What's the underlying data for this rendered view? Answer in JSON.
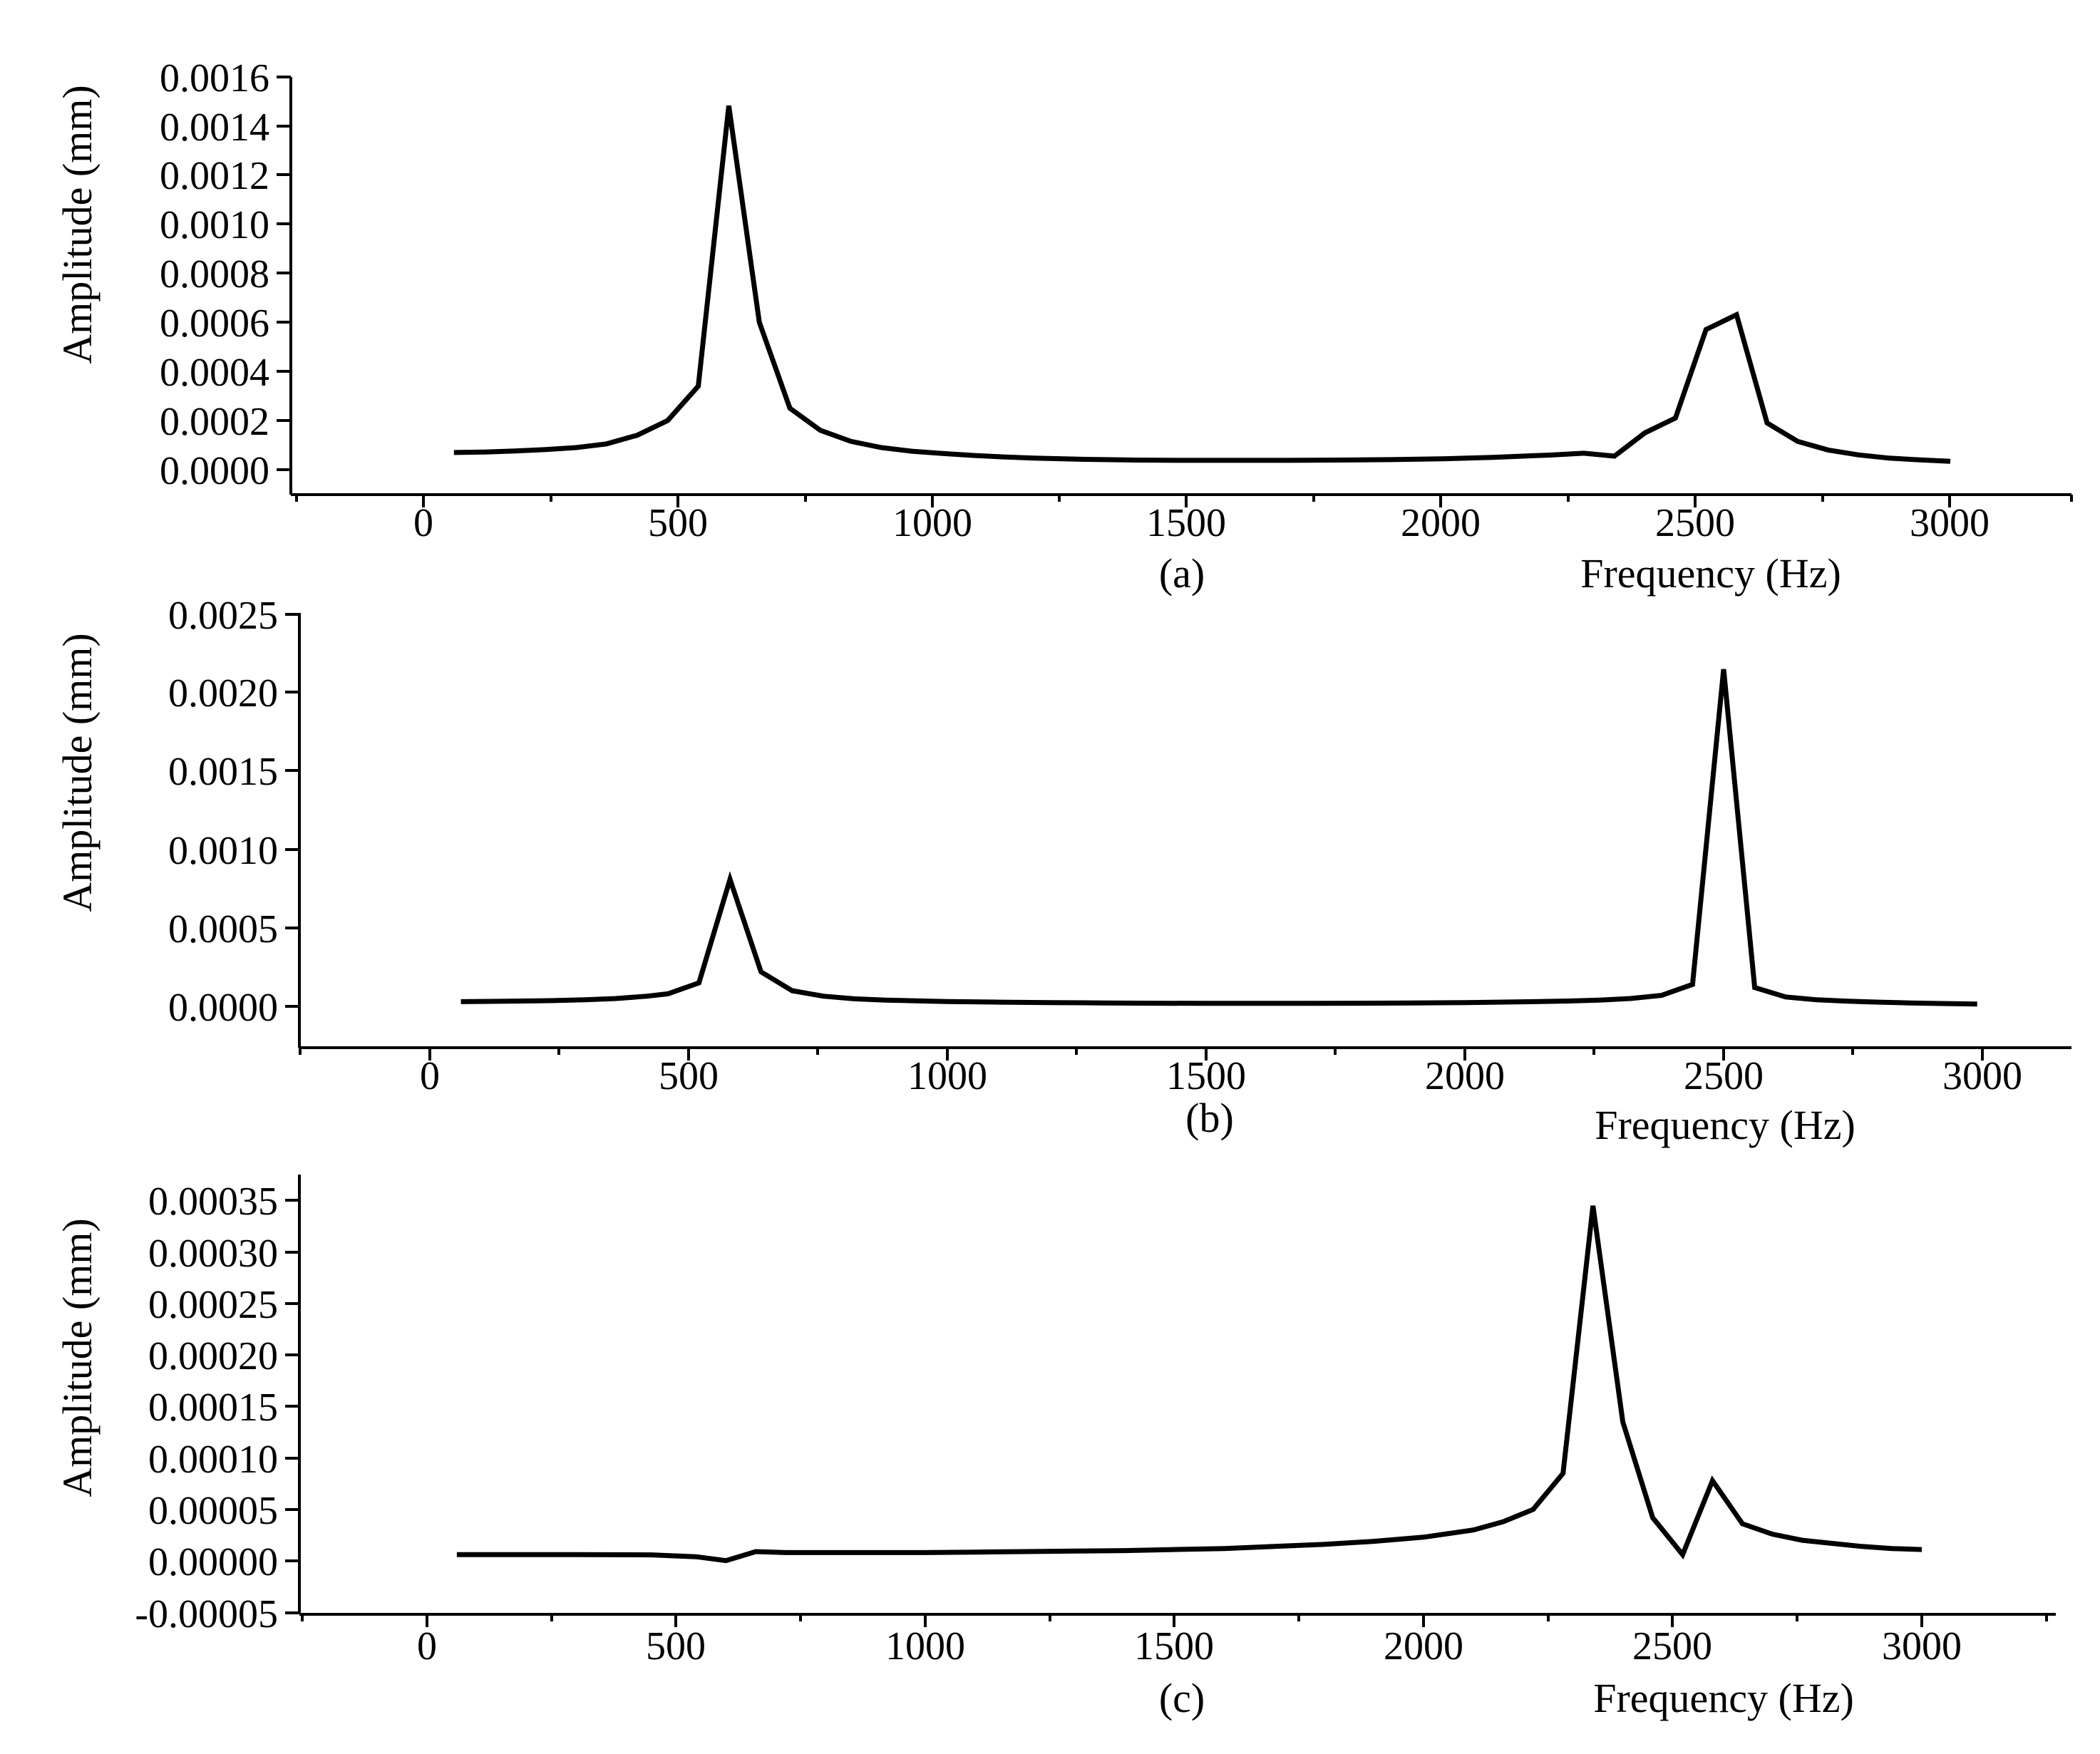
{
  "chart_data": [
    {
      "type": "line",
      "panel_label": "(a)",
      "xlabel": "Frequency (Hz)",
      "ylabel": "Amplitude (mm)",
      "xlim": [
        -250,
        3250
      ],
      "ylim": [
        -0.0001,
        0.0016
      ],
      "xticks": [
        0,
        500,
        1000,
        1500,
        2000,
        2500,
        3000
      ],
      "xtick_labels": [
        "0",
        "500",
        "1000",
        "1500",
        "2000",
        "2500",
        "3000"
      ],
      "yticks": [
        0.0,
        0.0002,
        0.0004,
        0.0006,
        0.0008,
        0.001,
        0.0012,
        0.0014,
        0.0016
      ],
      "ytick_labels": [
        "0.0000",
        "0.0002",
        "0.0004",
        "0.0006",
        "0.0008",
        "0.0010",
        "0.0012",
        "0.0014",
        "0.0016"
      ],
      "series": [
        {
          "name": "amplitude",
          "x": [
            60,
            120,
            180,
            240,
            300,
            360,
            420,
            480,
            540,
            600,
            660,
            720,
            780,
            840,
            900,
            960,
            1020,
            1080,
            1140,
            1200,
            1300,
            1400,
            1500,
            1600,
            1700,
            1800,
            1900,
            2000,
            2100,
            2160,
            2220,
            2280,
            2340,
            2400,
            2460,
            2520,
            2580,
            2640,
            2700,
            2760,
            2820,
            2880,
            2940,
            3000
          ],
          "y": [
            7e-05,
            7.2e-05,
            7.6e-05,
            8.2e-05,
            9e-05,
            0.000105,
            0.00014,
            0.0002,
            0.00034,
            0.00148,
            0.0006,
            0.00025,
            0.00016,
            0.000115,
            9e-05,
            7.5e-05,
            6.6e-05,
            5.8e-05,
            5.2e-05,
            4.7e-05,
            4.2e-05,
            3.9e-05,
            3.8e-05,
            3.8e-05,
            3.8e-05,
            3.9e-05,
            4.1e-05,
            4.4e-05,
            5e-05,
            5.5e-05,
            6e-05,
            6.7e-05,
            5.5e-05,
            0.00015,
            0.00021,
            0.00057,
            0.00063,
            0.00019,
            0.000115,
            8e-05,
            6e-05,
            4.7e-05,
            4e-05,
            3.4e-05
          ]
        }
      ]
    },
    {
      "type": "line",
      "panel_label": "(b)",
      "xlabel": "Frequency (Hz)",
      "ylabel": "Amplitude (mm)",
      "xlim": [
        -250,
        3250
      ],
      "ylim": [
        -0.00026,
        0.0025
      ],
      "xticks": [
        0,
        500,
        1000,
        1500,
        2000,
        2500,
        3000
      ],
      "xtick_labels": [
        "0",
        "500",
        "1000",
        "1500",
        "2000",
        "2500",
        "3000"
      ],
      "yticks": [
        0.0,
        0.0005,
        0.001,
        0.0015,
        0.002,
        0.0025
      ],
      "ytick_labels": [
        "0.0000",
        "0.0005",
        "0.0010",
        "0.0015",
        "0.0020",
        "0.0025"
      ],
      "series": [
        {
          "name": "amplitude",
          "x": [
            60,
            120,
            180,
            240,
            300,
            360,
            420,
            460,
            520,
            580,
            640,
            700,
            760,
            820,
            880,
            940,
            1000,
            1100,
            1200,
            1300,
            1400,
            1500,
            1600,
            1700,
            1800,
            1900,
            2000,
            2100,
            2200,
            2260,
            2320,
            2380,
            2440,
            2500,
            2560,
            2620,
            2680,
            2740,
            2800,
            2860,
            2920,
            2990
          ],
          "y": [
            3e-05,
            3.2e-05,
            3.4e-05,
            3.7e-05,
            4.2e-05,
            5e-05,
            6.5e-05,
            8e-05,
            0.00015,
            0.00081,
            0.00022,
            0.0001,
            6.5e-05,
            4.8e-05,
            4e-05,
            3.5e-05,
            3.1e-05,
            2.7e-05,
            2.4e-05,
            2.2e-05,
            2e-05,
            1.9e-05,
            1.9e-05,
            1.9e-05,
            2e-05,
            2.2e-05,
            2.4e-05,
            2.8e-05,
            3.4e-05,
            4e-05,
            5e-05,
            7e-05,
            0.00014,
            0.00215,
            0.00012,
            6e-05,
            4.2e-05,
            3.3e-05,
            2.7e-05,
            2.2e-05,
            1.8e-05,
            1.5e-05
          ]
        }
      ]
    },
    {
      "type": "line",
      "panel_label": "(c)",
      "xlabel": "Frequency (Hz)",
      "ylabel": "Amplitude (mm)",
      "xlim": [
        -250,
        3250
      ],
      "ylim": [
        -5e-05,
        0.00038
      ],
      "xticks": [
        0,
        500,
        1000,
        1500,
        2000,
        2500,
        3000
      ],
      "xtick_labels": [
        "0",
        "500",
        "1000",
        "1500",
        "2000",
        "2500",
        "3000"
      ],
      "yticks": [
        -5e-05,
        0.0,
        5e-05,
        0.0001,
        0.00015,
        0.0002,
        0.00025,
        0.0003,
        0.00035
      ],
      "ytick_labels": [
        "-0.00005",
        "0.00000",
        "0.00005",
        "0.00010",
        "0.00015",
        "0.00020",
        "0.00025",
        "0.00030",
        "0.00035"
      ],
      "series": [
        {
          "name": "amplitude",
          "x": [
            60,
            150,
            300,
            450,
            540,
            600,
            660,
            720,
            800,
            900,
            1000,
            1100,
            1200,
            1300,
            1400,
            1500,
            1600,
            1700,
            1800,
            1900,
            2000,
            2100,
            2160,
            2220,
            2280,
            2340,
            2400,
            2460,
            2520,
            2580,
            2640,
            2700,
            2760,
            2820,
            2880,
            2940,
            3000
          ],
          "y": [
            6e-06,
            6e-06,
            6e-06,
            5.8e-06,
            4e-06,
            2e-07,
            9e-06,
            8e-06,
            8e-06,
            8e-06,
            8e-06,
            8.5e-06,
            9e-06,
            9.5e-06,
            1e-05,
            1.1e-05,
            1.2e-05,
            1.4e-05,
            1.6e-05,
            1.9e-05,
            2.3e-05,
            3e-05,
            3.8e-05,
            5e-05,
            8.5e-05,
            0.000345,
            0.000135,
            4.2e-05,
            6e-06,
            7.8e-05,
            3.6e-05,
            2.6e-05,
            2e-05,
            1.7e-05,
            1.4e-05,
            1.2e-05,
            1.1e-05
          ]
        }
      ]
    }
  ]
}
